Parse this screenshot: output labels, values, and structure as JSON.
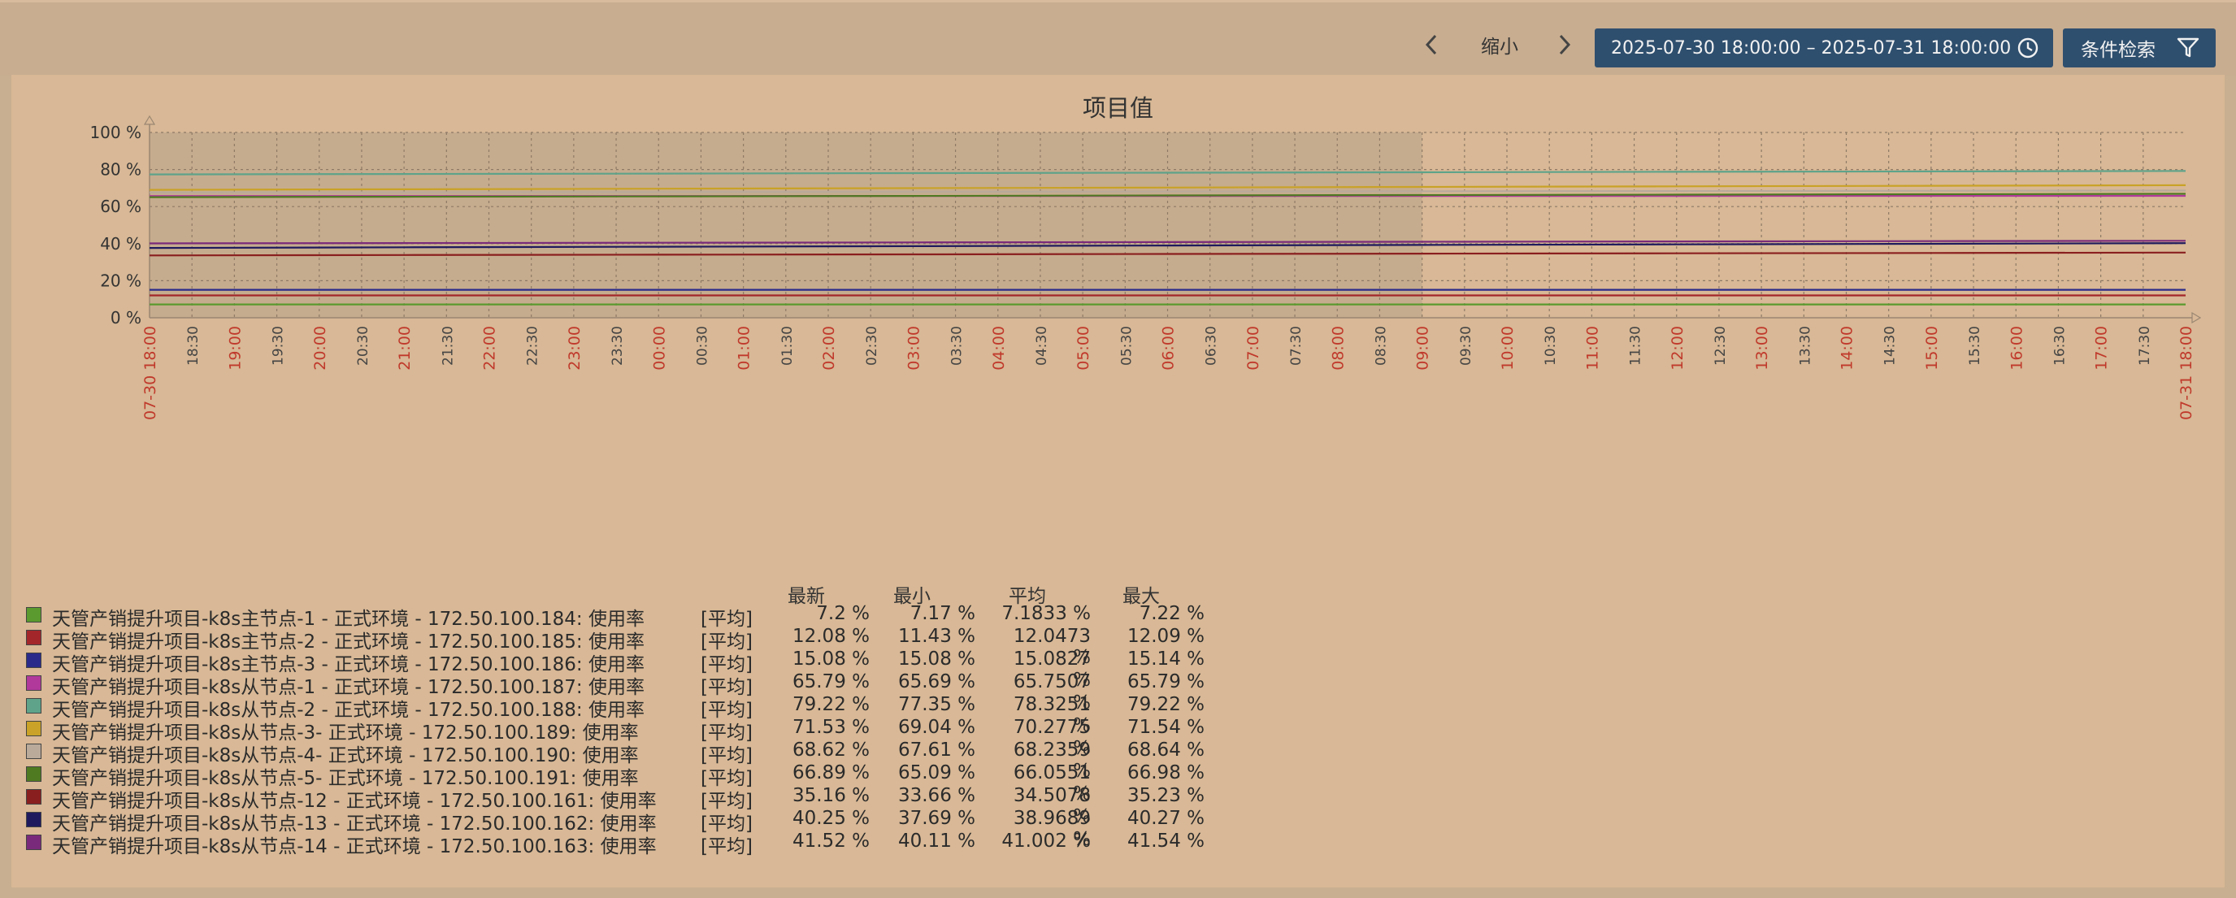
{
  "toolbar": {
    "zoom_label": "缩小",
    "time_range": "2025-07-30 18:00:00 – 2025-07-31 18:00:00",
    "filter_label": "条件检索"
  },
  "colors": {
    "button_bg": "#2f4f6e",
    "panel_bg": "#d8b896",
    "selection_bg": "#c6ac8e",
    "highlight_tick": "#c0392b"
  },
  "chart_data": {
    "type": "line",
    "title": "项目值",
    "y_ticks": [
      "0 %",
      "20 %",
      "40 %",
      "60 %",
      "80 %",
      "100 %"
    ],
    "ylim": [
      0,
      100
    ],
    "x_ticks": [
      {
        "label": "07-30 18:00",
        "major": true
      },
      {
        "label": "18:30",
        "major": false
      },
      {
        "label": "19:00",
        "major": true
      },
      {
        "label": "19:30",
        "major": false
      },
      {
        "label": "20:00",
        "major": true
      },
      {
        "label": "20:30",
        "major": false
      },
      {
        "label": "21:00",
        "major": true
      },
      {
        "label": "21:30",
        "major": false
      },
      {
        "label": "22:00",
        "major": true
      },
      {
        "label": "22:30",
        "major": false
      },
      {
        "label": "23:00",
        "major": true
      },
      {
        "label": "23:30",
        "major": false
      },
      {
        "label": "00:00",
        "major": true
      },
      {
        "label": "00:30",
        "major": false
      },
      {
        "label": "01:00",
        "major": true
      },
      {
        "label": "01:30",
        "major": false
      },
      {
        "label": "02:00",
        "major": true
      },
      {
        "label": "02:30",
        "major": false
      },
      {
        "label": "03:00",
        "major": true
      },
      {
        "label": "03:30",
        "major": false
      },
      {
        "label": "04:00",
        "major": true
      },
      {
        "label": "04:30",
        "major": false
      },
      {
        "label": "05:00",
        "major": true
      },
      {
        "label": "05:30",
        "major": false
      },
      {
        "label": "06:00",
        "major": true
      },
      {
        "label": "06:30",
        "major": false
      },
      {
        "label": "07:00",
        "major": true
      },
      {
        "label": "07:30",
        "major": false
      },
      {
        "label": "08:00",
        "major": true
      },
      {
        "label": "08:30",
        "major": false
      },
      {
        "label": "09:00",
        "major": true
      },
      {
        "label": "09:30",
        "major": false
      },
      {
        "label": "10:00",
        "major": true
      },
      {
        "label": "10:30",
        "major": false
      },
      {
        "label": "11:00",
        "major": true
      },
      {
        "label": "11:30",
        "major": false
      },
      {
        "label": "12:00",
        "major": true
      },
      {
        "label": "12:30",
        "major": false
      },
      {
        "label": "13:00",
        "major": true
      },
      {
        "label": "13:30",
        "major": false
      },
      {
        "label": "14:00",
        "major": true
      },
      {
        "label": "14:30",
        "major": false
      },
      {
        "label": "15:00",
        "major": true
      },
      {
        "label": "15:30",
        "major": false
      },
      {
        "label": "16:00",
        "major": true
      },
      {
        "label": "16:30",
        "major": false
      },
      {
        "label": "17:00",
        "major": true
      },
      {
        "label": "17:30",
        "major": false
      },
      {
        "label": "07-31 18:00",
        "major": true
      }
    ],
    "shaded_range_hours": [
      0,
      15
    ],
    "legend_headers": {
      "last": "最新",
      "min": "最小",
      "avg": "平均",
      "max": "最大"
    },
    "series": [
      {
        "name": "天管产销提升项目-k8s主节点-1 - 正式环境 - 172.50.100.184: 使用率",
        "func": "[平均]",
        "color": "#5a9a2e",
        "last": "7.2 %",
        "min": "7.17 %",
        "avg": "7.1833 %",
        "max": "7.22 %",
        "start": 7.18,
        "end": 7.2
      },
      {
        "name": "天管产销提升项目-k8s主节点-2 - 正式环境 - 172.50.100.185: 使用率",
        "func": "[平均]",
        "color": "#a3262a",
        "last": "12.08 %",
        "min": "11.43 %",
        "avg": "12.0473 %",
        "max": "12.09 %",
        "start": 12.05,
        "end": 12.08
      },
      {
        "name": "天管产销提升项目-k8s主节点-3 - 正式环境 - 172.50.100.186: 使用率",
        "func": "[平均]",
        "color": "#2a2a8a",
        "last": "15.08 %",
        "min": "15.08 %",
        "avg": "15.0827 %",
        "max": "15.14 %",
        "start": 15.08,
        "end": 15.08
      },
      {
        "name": "天管产销提升项目-k8s从节点-1 - 正式环境 - 172.50.100.187: 使用率",
        "func": "[平均]",
        "color": "#b0399b",
        "last": "65.79 %",
        "min": "65.69 %",
        "avg": "65.7507 %",
        "max": "65.79 %",
        "start": 65.7,
        "end": 65.79
      },
      {
        "name": "天管产销提升项目-k8s从节点-2 - 正式环境 - 172.50.100.188: 使用率",
        "func": "[平均]",
        "color": "#5ea38a",
        "last": "79.22 %",
        "min": "77.35 %",
        "avg": "78.3251 %",
        "max": "79.22 %",
        "start": 77.35,
        "end": 79.22
      },
      {
        "name": "天管产销提升项目-k8s从节点-3- 正式环境 - 172.50.100.189: 使用率",
        "func": "[平均]",
        "color": "#c9a227",
        "last": "71.53 %",
        "min": "69.04 %",
        "avg": "70.2775 %",
        "max": "71.54 %",
        "start": 69.04,
        "end": 71.53
      },
      {
        "name": "天管产销提升项目-k8s从节点-4- 正式环境 - 172.50.100.190: 使用率",
        "func": "[平均]",
        "color": "#b9aa9a",
        "last": "68.62 %",
        "min": "67.61 %",
        "avg": "68.2359 %",
        "max": "68.64 %",
        "start": 67.61,
        "end": 68.62
      },
      {
        "name": "天管产销提升项目-k8s从节点-5- 正式环境 - 172.50.100.191: 使用率",
        "func": "[平均]",
        "color": "#4f7a22",
        "last": "66.89 %",
        "min": "65.09 %",
        "avg": "66.0551 %",
        "max": "66.98 %",
        "start": 65.09,
        "end": 66.89
      },
      {
        "name": "天管产销提升项目-k8s从节点-12 - 正式环境 - 172.50.100.161: 使用率",
        "func": "[平均]",
        "color": "#8a1f1f",
        "last": "35.16 %",
        "min": "33.66 %",
        "avg": "34.5078 %",
        "max": "35.23 %",
        "start": 33.66,
        "end": 35.16
      },
      {
        "name": "天管产销提升项目-k8s从节点-13 - 正式环境 - 172.50.100.162: 使用率",
        "func": "[平均]",
        "color": "#1f1a5e",
        "last": "40.25 %",
        "min": "37.69 %",
        "avg": "38.9689 %",
        "max": "40.27 %",
        "start": 37.69,
        "end": 40.25
      },
      {
        "name": "天管产销提升项目-k8s从节点-14 - 正式环境 - 172.50.100.163: 使用率",
        "func": "[平均]",
        "color": "#7a2a7a",
        "last": "41.52 %",
        "min": "40.11 %",
        "avg": "41.002 %",
        "max": "41.54 %",
        "start": 40.11,
        "end": 41.52
      }
    ]
  }
}
